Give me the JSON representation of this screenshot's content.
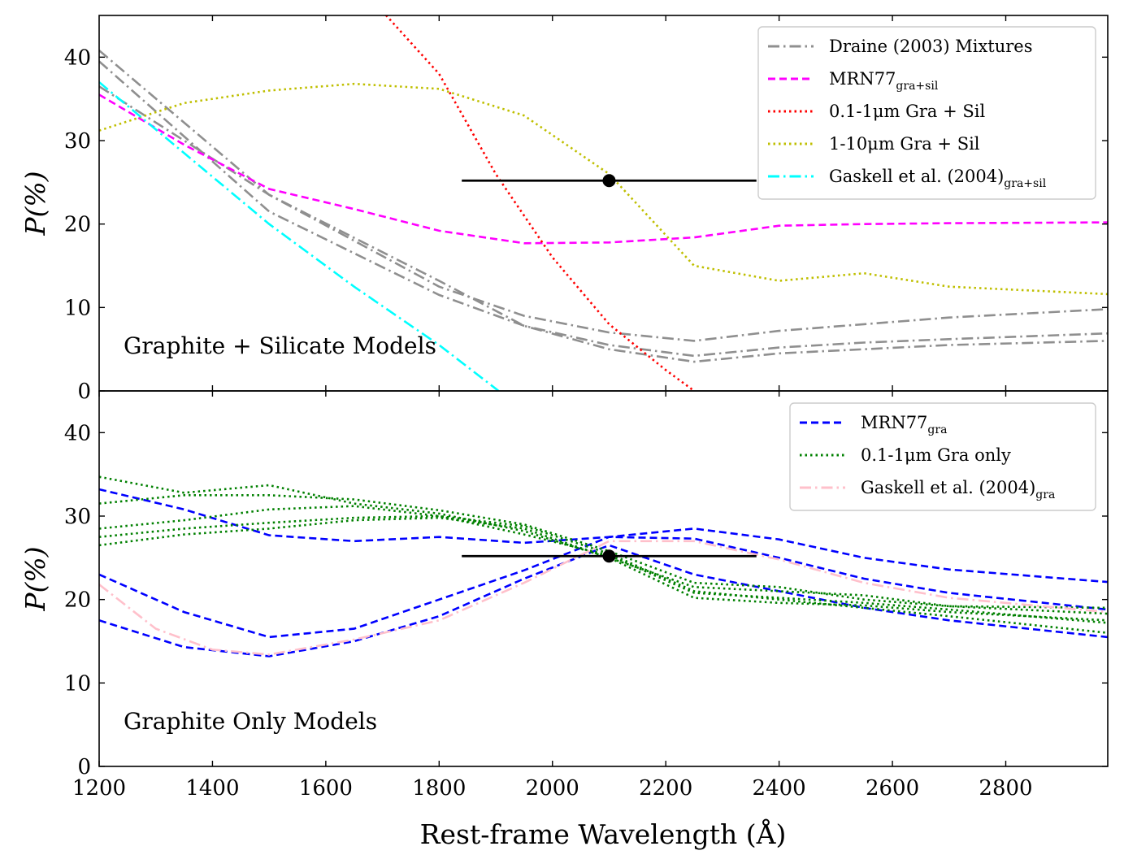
{
  "chart_data": [
    {
      "type": "line",
      "panel": "top",
      "annotation": "Graphite + Silicate Models",
      "ylabel": "P(%)",
      "xlim": [
        1200,
        2980
      ],
      "ylim": [
        0,
        45
      ],
      "xticks": [
        1400,
        1600,
        1800,
        2000,
        2200,
        2400,
        2600,
        2800
      ],
      "yticks": [
        0,
        10,
        20,
        30,
        40
      ],
      "ytick_labels": [
        "0",
        "10",
        "20",
        "30",
        "40"
      ],
      "legend_position": "top-right",
      "legend": [
        {
          "text": "Draine (2003) Mixtures",
          "sub": "",
          "color": "#8f8f8f",
          "dash": "dashdot"
        },
        {
          "text": "MRN77",
          "sub": "gra+sil",
          "color": "#ff00ff",
          "dash": "dashed"
        },
        {
          "text": "0.1-1μm Gra + Sil",
          "sub": "",
          "color": "#ff0000",
          "dash": "dotted"
        },
        {
          "text": "1-10μm Gra + Sil",
          "sub": "",
          "color": "#bfbf00",
          "dash": "dotted"
        },
        {
          "text": "Gaskell et al. (2004)",
          "sub": "gra+sil",
          "color": "#00ffff",
          "dash": "dashdot"
        }
      ],
      "observation": {
        "x": 2100,
        "y": 25.2,
        "xerr": [
          1840,
          2360
        ]
      },
      "series": [
        {
          "color": "#8f8f8f",
          "dash": "dashdot",
          "x": [
            1200,
            1500,
            1800,
            1950,
            2100,
            2250,
            2400,
            2550,
            2700,
            2980
          ],
          "y": [
            40.8,
            23.5,
            12.5,
            9.0,
            7.0,
            6.0,
            7.2,
            8.0,
            8.8,
            9.8
          ]
        },
        {
          "color": "#8f8f8f",
          "dash": "dashdot",
          "x": [
            1200,
            1500,
            1800,
            1950,
            2100,
            2250,
            2400,
            2550,
            2700,
            2980
          ],
          "y": [
            39.5,
            21.5,
            11.5,
            7.8,
            5.5,
            4.2,
            5.2,
            5.8,
            6.2,
            6.9
          ]
        },
        {
          "color": "#8f8f8f",
          "dash": "dashdot",
          "x": [
            1200,
            1500,
            1800,
            1950,
            2100,
            2250,
            2400,
            2550,
            2700,
            2980
          ],
          "y": [
            36.5,
            23.5,
            13.2,
            7.8,
            5.0,
            3.5,
            4.5,
            5.0,
            5.5,
            6.0
          ]
        },
        {
          "color": "#ff00ff",
          "dash": "dashed",
          "x": [
            1200,
            1350,
            1500,
            1650,
            1800,
            1950,
            2100,
            2250,
            2400,
            2550,
            2700,
            2980
          ],
          "y": [
            35.5,
            29.5,
            24.2,
            21.8,
            19.2,
            17.7,
            17.8,
            18.4,
            19.8,
            20.0,
            20.1,
            20.2
          ]
        },
        {
          "color": "#ff0000",
          "dash": "dotted",
          "x": [
            1700,
            1800,
            1900,
            2000,
            2100,
            2200,
            2250
          ],
          "y": [
            45.5,
            38.0,
            26.0,
            16.0,
            8.0,
            2.5,
            0.0
          ]
        },
        {
          "color": "#bfbf00",
          "dash": "dotted",
          "x": [
            1200,
            1350,
            1500,
            1650,
            1800,
            1950,
            2100,
            2250,
            2400,
            2550,
            2700,
            2980
          ],
          "y": [
            31.2,
            34.5,
            36.0,
            36.8,
            36.2,
            33.0,
            26.0,
            15.0,
            13.2,
            14.1,
            12.5,
            11.6
          ]
        },
        {
          "color": "#00ffff",
          "dash": "dashdot",
          "x": [
            1200,
            1350,
            1500,
            1650,
            1800,
            1905
          ],
          "y": [
            37.0,
            28.5,
            20.0,
            12.5,
            5.5,
            0.0
          ]
        }
      ]
    },
    {
      "type": "line",
      "panel": "bottom",
      "annotation": "Graphite Only Models",
      "ylabel": "P(%)",
      "xlabel": "Rest-frame Wavelength (Å)",
      "xlim": [
        1200,
        2980
      ],
      "ylim": [
        0,
        45
      ],
      "xticks": [
        1200,
        1400,
        1600,
        1800,
        2000,
        2200,
        2400,
        2600,
        2800
      ],
      "xtick_labels": [
        "1200",
        "1400",
        "1600",
        "1800",
        "2000",
        "2200",
        "2400",
        "2600",
        "2800"
      ],
      "yticks": [
        0,
        10,
        20,
        30,
        40
      ],
      "ytick_labels": [
        "0",
        "10",
        "20",
        "30",
        "40"
      ],
      "legend_position": "top-right",
      "legend": [
        {
          "text": "MRN77",
          "sub": "gra",
          "color": "#0000ff",
          "dash": "dashed"
        },
        {
          "text": "0.1-1μm Gra only",
          "sub": "",
          "color": "#008000",
          "dash": "dotted"
        },
        {
          "text": "Gaskell et al. (2004)",
          "sub": "gra",
          "color": "#ffc0cb",
          "dash": "dashdot"
        }
      ],
      "observation": {
        "x": 2100,
        "y": 25.2,
        "xerr": [
          1840,
          2360
        ]
      },
      "series": [
        {
          "color": "#0000ff",
          "dash": "dashed",
          "x": [
            1200,
            1350,
            1500,
            1650,
            1800,
            1950,
            2100,
            2250,
            2400,
            2550,
            2700,
            2980
          ],
          "y": [
            33.2,
            30.8,
            27.7,
            27.0,
            27.5,
            26.8,
            27.5,
            27.3,
            25.0,
            22.5,
            20.8,
            18.8
          ]
        },
        {
          "color": "#0000ff",
          "dash": "dashed",
          "x": [
            1200,
            1350,
            1500,
            1650,
            1800,
            1950,
            2100,
            2250,
            2400,
            2550,
            2700,
            2980
          ],
          "y": [
            23.0,
            18.5,
            15.5,
            16.5,
            20.0,
            23.5,
            27.5,
            28.5,
            27.2,
            25.0,
            23.6,
            22.1
          ]
        },
        {
          "color": "#0000ff",
          "dash": "dashed",
          "x": [
            1200,
            1350,
            1500,
            1650,
            1800,
            1950,
            2100,
            2250,
            2400,
            2550,
            2700,
            2980
          ],
          "y": [
            17.5,
            14.3,
            13.2,
            15.0,
            18.0,
            22.5,
            26.5,
            23.0,
            21.0,
            19.0,
            17.5,
            15.5
          ]
        },
        {
          "color": "#008000",
          "dash": "dotted",
          "x": [
            1200,
            1350,
            1500,
            1650,
            1800,
            1950,
            2100,
            2250,
            2400,
            2550,
            2700,
            2980
          ],
          "y": [
            34.7,
            32.8,
            33.7,
            31.5,
            30.3,
            28.2,
            25.0,
            21.5,
            21.0,
            20.5,
            19.2,
            19.0
          ]
        },
        {
          "color": "#008000",
          "dash": "dotted",
          "x": [
            1200,
            1350,
            1500,
            1650,
            1800,
            1950,
            2100,
            2250,
            2400,
            2550,
            2700,
            2980
          ],
          "y": [
            31.5,
            32.5,
            32.5,
            32.0,
            30.7,
            29.0,
            25.8,
            22.0,
            21.5,
            20.0,
            19.2,
            18.3
          ]
        },
        {
          "color": "#008000",
          "dash": "dotted",
          "x": [
            1200,
            1350,
            1500,
            1650,
            1800,
            1950,
            2100,
            2250,
            2400,
            2550,
            2700,
            2980
          ],
          "y": [
            28.5,
            29.5,
            30.8,
            31.2,
            30.0,
            27.8,
            25.3,
            20.8,
            20.2,
            19.6,
            18.8,
            17.2
          ]
        },
        {
          "color": "#008000",
          "dash": "dotted",
          "x": [
            1200,
            1350,
            1500,
            1650,
            1800,
            1950,
            2100,
            2250,
            2400,
            2550,
            2700,
            2980
          ],
          "y": [
            27.5,
            28.5,
            29.2,
            29.8,
            30.0,
            28.8,
            25.5,
            21.0,
            20.0,
            19.0,
            18.0,
            16.0
          ]
        },
        {
          "color": "#008000",
          "dash": "dotted",
          "x": [
            1200,
            1350,
            1500,
            1650,
            1800,
            1950,
            2100,
            2250,
            2400,
            2550,
            2700,
            2980
          ],
          "y": [
            26.5,
            27.8,
            28.5,
            29.5,
            29.8,
            28.5,
            25.0,
            20.2,
            19.6,
            19.3,
            18.5,
            17.5
          ]
        },
        {
          "color": "#ffc0cb",
          "dash": "dashdot",
          "x": [
            1200,
            1300,
            1400,
            1500,
            1650,
            1800,
            1950,
            2100,
            2250,
            2400,
            2550,
            2700,
            2980
          ],
          "y": [
            21.8,
            16.5,
            14.0,
            13.4,
            15.2,
            17.5,
            22.0,
            27.0,
            27.0,
            24.8,
            22.0,
            20.2,
            18.5
          ]
        }
      ]
    }
  ]
}
